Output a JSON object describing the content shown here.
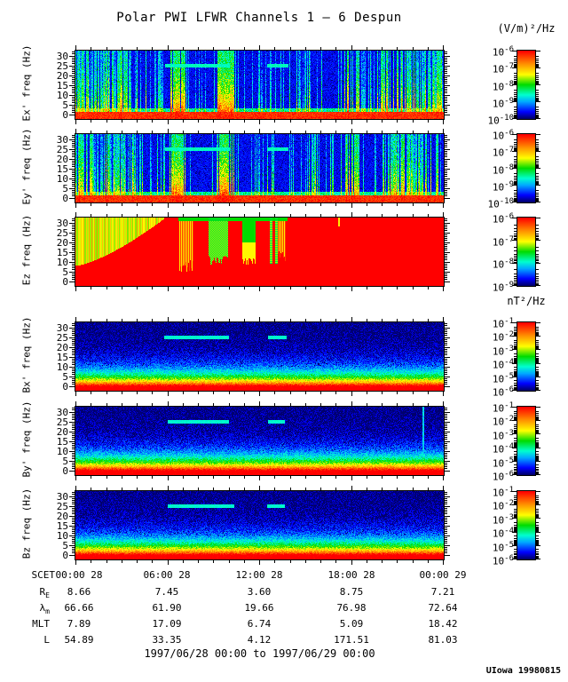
{
  "title": "Polar PWI LFWR Channels 1 — 6 Despun",
  "credit": "UIowa 19980815",
  "footer": {
    "date_range": "1997/06/28 00:00 to 1997/06/29 00:00"
  },
  "colors": {
    "background": "#ffffff",
    "axis": "#000000",
    "colormap_stops": [
      {
        "v": 0.0,
        "hex": "#00006e"
      },
      {
        "v": 0.1,
        "hex": "#0000ff"
      },
      {
        "v": 0.25,
        "hex": "#00aaff"
      },
      {
        "v": 0.35,
        "hex": "#00ffd0"
      },
      {
        "v": 0.5,
        "hex": "#00dc00"
      },
      {
        "v": 0.65,
        "hex": "#ffff00"
      },
      {
        "v": 0.8,
        "hex": "#ff9600"
      },
      {
        "v": 1.0,
        "hex": "#ff0000"
      }
    ]
  },
  "chart_data": {
    "type": "heatmap",
    "x": {
      "axis_label": "SCET",
      "tick_labels": [
        "00:00 28",
        "06:00 28",
        "12:00 28",
        "18:00 28",
        "00:00 29"
      ],
      "minor_tick_hours": 1,
      "major_tick_hours": 6,
      "time_span_hours": 24
    },
    "y": {
      "ticks": [
        0,
        5,
        10,
        15,
        20,
        25,
        30
      ],
      "range": [
        -2,
        32.5
      ],
      "unit": "Hz"
    },
    "panels": [
      {
        "id": "ex",
        "ylabel": "Ex' freq (Hz)",
        "unit": "(V/m)²/Hz",
        "colorbar_exponents": [
          -6,
          -7,
          -8,
          -9,
          -10
        ],
        "pattern": "e-burst",
        "seed": 11,
        "features": {
          "cyan_line_hz": 25,
          "cyan_segments": [
            [
              0.243,
              0.418
            ],
            [
              0.52,
              0.578
            ]
          ],
          "streak_regions": [
            [
              0.0,
              0.155,
              0.8,
              0.35,
              0.95
            ],
            [
              0.155,
              0.25,
              0.35,
              0.3,
              0.8
            ],
            [
              0.255,
              0.298,
              0.9,
              0.8,
              1.0
            ],
            [
              0.298,
              0.385,
              0.12,
              0.3,
              0.6
            ],
            [
              0.385,
              0.432,
              0.92,
              0.85,
              1.0
            ],
            [
              0.432,
              0.52,
              0.1,
              0.3,
              0.6
            ],
            [
              0.52,
              0.6,
              0.15,
              0.3,
              0.7
            ],
            [
              0.6,
              0.66,
              0.3,
              0.3,
              0.8
            ],
            [
              0.66,
              0.73,
              0.15,
              0.3,
              0.7
            ],
            [
              0.73,
              0.775,
              0.55,
              0.6,
              1.0
            ],
            [
              0.775,
              0.83,
              0.3,
              0.3,
              0.8
            ],
            [
              0.83,
              1.0,
              0.65,
              0.4,
              0.95
            ]
          ]
        }
      },
      {
        "id": "ey",
        "ylabel": "Ey' freq (Hz)",
        "unit": "(V/m)²/Hz",
        "colorbar_exponents": [
          -6,
          -7,
          -8,
          -9,
          -10
        ],
        "pattern": "e-burst",
        "seed": 23,
        "features": {
          "cyan_line_hz": 25,
          "cyan_segments": [
            [
              0.243,
              0.418
            ],
            [
              0.52,
              0.578
            ]
          ],
          "streak_regions": [
            [
              0.0,
              0.155,
              0.8,
              0.35,
              0.95
            ],
            [
              0.155,
              0.25,
              0.35,
              0.3,
              0.8
            ],
            [
              0.255,
              0.298,
              0.9,
              0.8,
              1.0
            ],
            [
              0.298,
              0.385,
              0.12,
              0.3,
              0.6
            ],
            [
              0.385,
              0.432,
              0.92,
              0.85,
              1.0
            ],
            [
              0.432,
              0.52,
              0.1,
              0.3,
              0.6
            ],
            [
              0.52,
              0.6,
              0.15,
              0.3,
              0.7
            ],
            [
              0.6,
              0.66,
              0.3,
              0.3,
              0.8
            ],
            [
              0.66,
              0.73,
              0.15,
              0.3,
              0.7
            ],
            [
              0.73,
              0.775,
              0.55,
              0.6,
              1.0
            ],
            [
              0.775,
              0.83,
              0.3,
              0.3,
              0.8
            ],
            [
              0.83,
              1.0,
              0.65,
              0.4,
              0.95
            ]
          ]
        }
      },
      {
        "id": "ez",
        "ylabel": "Ez freq (Hz)",
        "unit": "(V/m)²/Hz",
        "colorbar_exponents": [
          -6,
          -7,
          -8,
          -9
        ],
        "pattern": "ez-red",
        "seed": 37,
        "features": {
          "left_blob": [
            0.24,
            8,
            24
          ],
          "stripe_bands": [
            [
              0.282,
              0.32,
              8
            ],
            [
              0.549,
              0.571,
              13
            ]
          ],
          "dotted_band": [
            0.361,
            0.414,
            11
          ],
          "solid_band": [
            0.453,
            0.489,
            10
          ],
          "thin_lines": [
            [
              0.527,
              0.534
            ],
            [
              0.543,
              0.549
            ]
          ],
          "top_cap": [
            0.28,
            0.575
          ],
          "top_tick": [
            0.714,
            0.718
          ]
        }
      },
      {
        "id": "bx",
        "ylabel": "Bx' freq (Hz)",
        "unit": "nT²/Hz",
        "colorbar_exponents": [
          -1,
          -2,
          -3,
          -4,
          -5,
          -6
        ],
        "pattern": "b-ambient",
        "seed": 51,
        "features": {
          "cyan_line_hz": 25,
          "cyan_segments": [
            [
              0.241,
              0.417
            ],
            [
              0.523,
              0.574
            ]
          ]
        }
      },
      {
        "id": "by",
        "ylabel": "By' freq (Hz)",
        "unit": "nT²/Hz",
        "colorbar_exponents": [
          -1,
          -2,
          -3,
          -4,
          -5,
          -6
        ],
        "pattern": "b-ambient",
        "seed": 63,
        "features": {
          "cyan_line_hz": 25,
          "cyan_segments": [
            [
              0.25,
              0.417
            ],
            [
              0.523,
              0.57
            ]
          ],
          "vline": [
            0.944,
            0.948
          ]
        }
      },
      {
        "id": "bz",
        "ylabel": "Bz freq (Hz)",
        "unit": "nT²/Hz",
        "colorbar_exponents": [
          -1,
          -2,
          -3,
          -4,
          -5,
          -6
        ],
        "pattern": "b-ambient",
        "seed": 77,
        "features": {
          "cyan_line_hz": 25,
          "cyan_segments": [
            [
              0.25,
              0.43
            ],
            [
              0.52,
              0.57
            ]
          ]
        }
      }
    ],
    "ephemeris_rows": [
      {
        "label": "R",
        "sub": "E",
        "values": [
          "8.66",
          "7.45",
          "3.60",
          "8.75",
          "7.21"
        ]
      },
      {
        "label": "λ",
        "sub": "m",
        "values": [
          "66.66",
          "61.90",
          "19.66",
          "76.98",
          "72.64"
        ]
      },
      {
        "label": "MLT",
        "sub": "",
        "values": [
          "7.89",
          "17.09",
          "6.74",
          "5.09",
          "18.42"
        ]
      },
      {
        "label": "L",
        "sub": "",
        "values": [
          "54.89",
          "33.35",
          "4.12",
          "171.51",
          "81.03"
        ]
      }
    ]
  }
}
